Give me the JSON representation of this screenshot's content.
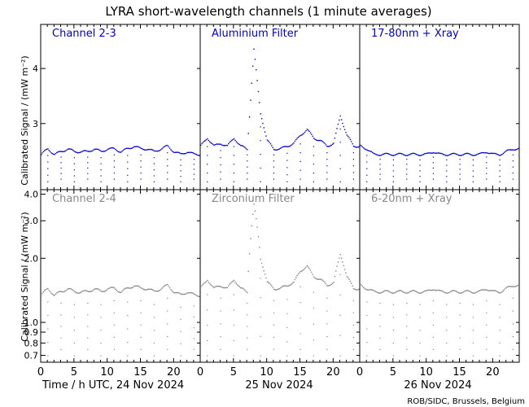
{
  "title": "LYRA short-wavelength channels (1 minute averages)",
  "credit": "ROB/SIDC, Brussels, Belgium",
  "colors": {
    "top": "#0000cc",
    "bottom": "#888888",
    "axis": "#000000"
  },
  "chart_data": [
    {
      "type": "scatter",
      "row": "top",
      "ylabel": "Calibrated Signal / (mW m⁻²)",
      "yticks": [
        "3",
        "4"
      ],
      "ylim": [
        1.8,
        4.8
      ],
      "yscale": "linear",
      "xlim": [
        0,
        72
      ],
      "panels": [
        {
          "name": "Channel 2-3"
        },
        {
          "name": "Aluminium Filter"
        },
        {
          "name": "17-80nm + Xray"
        }
      ],
      "series": [
        {
          "day": "24 Nov 2024",
          "baseline": [
            2.45,
            2.55,
            2.45,
            2.5,
            2.55,
            2.5,
            2.5,
            2.5,
            2.55,
            2.5,
            2.55,
            2.55,
            2.5,
            2.55,
            2.6,
            2.55,
            2.55,
            2.5,
            2.55,
            2.6,
            2.5,
            2.45,
            2.5,
            2.45
          ],
          "dips": [
            1.95,
            2.0,
            1.95,
            2.0,
            1.95,
            2.0,
            1.95,
            2.0,
            1.95,
            2.0,
            1.95,
            2.0
          ]
        },
        {
          "day": "25 Nov 2024",
          "baseline": [
            2.6,
            2.75,
            2.6,
            2.65,
            2.6,
            2.75,
            2.6,
            2.55,
            4.35,
            3.2,
            2.7,
            2.55,
            2.55,
            2.6,
            2.65,
            2.8,
            2.9,
            2.75,
            2.7,
            2.6,
            2.65,
            3.15,
            2.8,
            2.6
          ],
          "dips": [
            1.95,
            2.0,
            1.95,
            2.0,
            1.95,
            2.0,
            1.95,
            2.0,
            1.95,
            2.0,
            1.95,
            2.0
          ]
        },
        {
          "day": "26 Nov 2024",
          "baseline": [
            2.6,
            2.55,
            2.45,
            2.45,
            2.45,
            2.45,
            2.45,
            2.45,
            2.45,
            2.45,
            2.45,
            2.5,
            2.45,
            2.45,
            2.45,
            2.45,
            2.45,
            2.45,
            2.45,
            2.5,
            2.45,
            2.45,
            2.5,
            2.55
          ],
          "dips": [
            1.95,
            2.0,
            1.95,
            2.0,
            1.95,
            2.0,
            1.95,
            2.0,
            1.95,
            2.0,
            1.95,
            2.0
          ]
        }
      ]
    },
    {
      "type": "scatter",
      "row": "bottom",
      "ylabel": "Calibrated Signal / (mW m⁻²)",
      "yticks": [
        "0.7",
        "0.8",
        "0.9",
        "1.0",
        "2.0",
        "3.0",
        "4.0"
      ],
      "yscale": "log",
      "ylim": [
        0.65,
        4.2
      ],
      "xlim": [
        0,
        72
      ],
      "panels": [
        {
          "name": "Channel 2-4"
        },
        {
          "name": "Zirconium Filter"
        },
        {
          "name": "6-20nm + Xray"
        }
      ],
      "series": [
        {
          "day": "24 Nov 2024",
          "baseline": [
            1.35,
            1.45,
            1.35,
            1.4,
            1.45,
            1.4,
            1.4,
            1.4,
            1.45,
            1.4,
            1.45,
            1.45,
            1.4,
            1.45,
            1.5,
            1.45,
            1.45,
            1.4,
            1.45,
            1.5,
            1.4,
            1.35,
            1.4,
            1.35
          ],
          "dips": [
            0.7,
            0.75,
            0.7,
            0.75,
            0.7,
            0.75,
            0.7,
            0.75,
            0.7,
            0.75,
            0.7,
            0.75
          ]
        },
        {
          "day": "25 Nov 2024",
          "baseline": [
            1.45,
            1.6,
            1.45,
            1.5,
            1.45,
            1.6,
            1.45,
            1.4,
            3.6,
            2.0,
            1.55,
            1.45,
            1.45,
            1.5,
            1.55,
            1.75,
            1.85,
            1.65,
            1.6,
            1.5,
            1.55,
            2.1,
            1.65,
            1.45
          ],
          "dips": [
            0.7,
            0.75,
            0.7,
            0.75,
            0.7,
            0.75,
            0.7,
            0.75,
            0.7,
            0.75,
            0.7,
            0.75
          ]
        },
        {
          "day": "26 Nov 2024",
          "baseline": [
            1.5,
            1.45,
            1.4,
            1.4,
            1.4,
            1.4,
            1.4,
            1.4,
            1.4,
            1.4,
            1.4,
            1.45,
            1.4,
            1.4,
            1.4,
            1.4,
            1.4,
            1.4,
            1.4,
            1.45,
            1.4,
            1.4,
            1.45,
            1.5
          ],
          "dips": [
            0.7,
            0.75,
            0.7,
            0.75,
            0.7,
            0.75,
            0.7,
            0.75,
            0.7,
            0.75,
            0.7,
            0.75
          ]
        }
      ]
    }
  ],
  "xaxis": {
    "ticks": [
      "0",
      "5",
      "10",
      "15",
      "20"
    ],
    "labels": [
      "Time / h UTC, 24 Nov 2024",
      "25 Nov 2024",
      "26 Nov 2024"
    ]
  }
}
